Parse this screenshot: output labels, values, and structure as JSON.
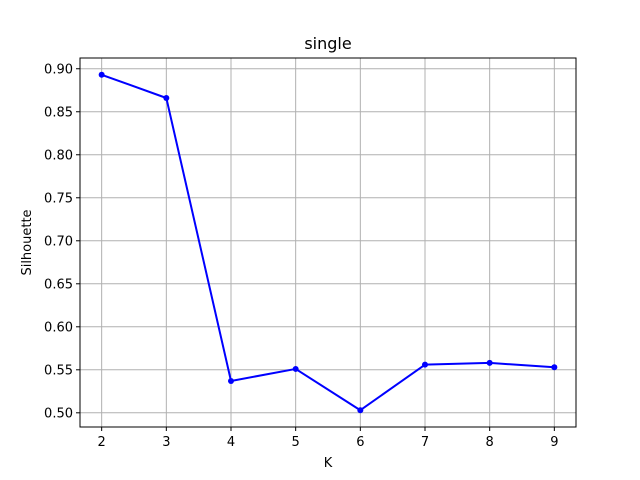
{
  "chart_data": {
    "type": "line",
    "title": "single",
    "xlabel": "K",
    "ylabel": "Silhouette",
    "x": [
      2,
      3,
      4,
      5,
      6,
      7,
      8,
      9
    ],
    "series": [
      {
        "values": [
          0.893,
          0.866,
          0.537,
          0.551,
          0.503,
          0.556,
          0.558,
          0.553
        ],
        "color": "#0000ff",
        "marker": "circle"
      }
    ],
    "xticks": [
      2,
      3,
      4,
      5,
      6,
      7,
      8,
      9
    ],
    "yticks": [
      0.5,
      0.55,
      0.6,
      0.65,
      0.7,
      0.75,
      0.8,
      0.85,
      0.9
    ],
    "ytick_labels": [
      "0.50",
      "0.55",
      "0.60",
      "0.65",
      "0.70",
      "0.75",
      "0.80",
      "0.85",
      "0.90"
    ],
    "xlim": [
      1.665,
      9.335
    ],
    "ylim": [
      0.4835,
      0.9125
    ],
    "grid": true,
    "grid_color": "#b0b0b0"
  }
}
